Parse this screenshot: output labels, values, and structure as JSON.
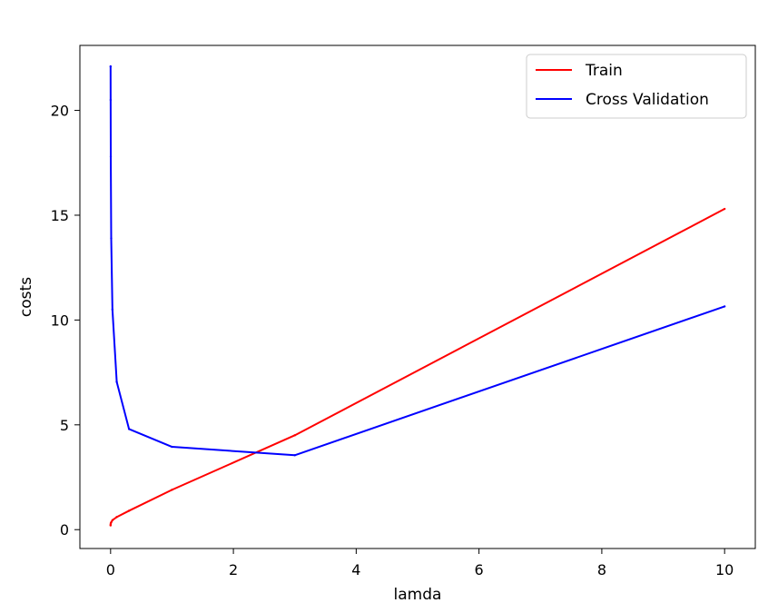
{
  "chart_data": {
    "type": "line",
    "title": "",
    "xlabel": "lamda",
    "ylabel": "costs",
    "xlim": [
      -0.5,
      10.5
    ],
    "ylim": [
      -0.9,
      23.1
    ],
    "xticks": [
      0,
      2,
      4,
      6,
      8,
      10
    ],
    "yticks": [
      0,
      5,
      10,
      15,
      20
    ],
    "grid": false,
    "legend_position": "top-right",
    "series": [
      {
        "name": "Train",
        "color": "#ff0000",
        "x": [
          0,
          0.001,
          0.003,
          0.01,
          0.03,
          0.1,
          0.3,
          1,
          3,
          10
        ],
        "y": [
          0.2,
          0.25,
          0.3,
          0.35,
          0.45,
          0.6,
          0.9,
          1.9,
          4.5,
          15.3
        ]
      },
      {
        "name": "Cross Validation",
        "color": "#0000ff",
        "x": [
          0,
          0.001,
          0.003,
          0.01,
          0.03,
          0.1,
          0.3,
          1,
          3,
          10
        ],
        "y": [
          22.1,
          20.5,
          17.8,
          13.9,
          10.5,
          7.05,
          4.8,
          3.95,
          3.55,
          10.65
        ]
      }
    ]
  }
}
